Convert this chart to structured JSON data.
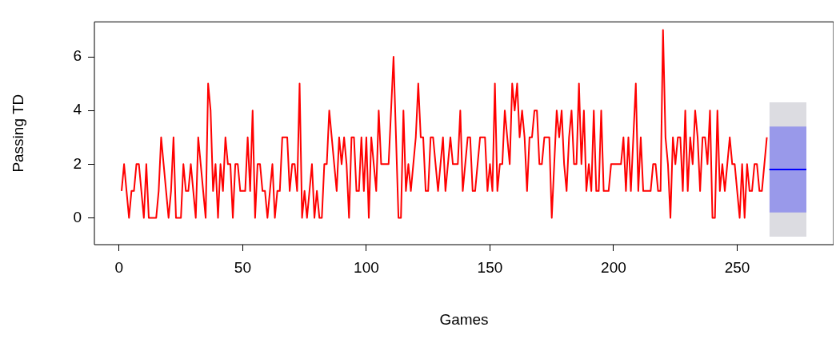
{
  "chart_data": {
    "type": "line",
    "xlabel": "Games",
    "ylabel": "Passing TD",
    "xlim": [
      -10,
      289
    ],
    "ylim": [
      -1,
      7.3
    ],
    "xticks": [
      0,
      50,
      100,
      150,
      200,
      250
    ],
    "yticks": [
      0,
      2,
      4,
      6
    ],
    "grid": false,
    "legend": false,
    "series": [
      {
        "color": "#ff0000",
        "x": [
          1,
          2,
          3,
          4,
          5,
          6,
          7,
          8,
          9,
          10,
          11,
          12,
          13,
          14,
          15,
          16,
          17,
          18,
          19,
          20,
          21,
          22,
          23,
          24,
          25,
          26,
          27,
          28,
          29,
          30,
          31,
          32,
          33,
          34,
          35,
          36,
          37,
          38,
          39,
          40,
          41,
          42,
          43,
          44,
          45,
          46,
          47,
          48,
          49,
          50,
          51,
          52,
          53,
          54,
          55,
          56,
          57,
          58,
          59,
          60,
          61,
          62,
          63,
          64,
          65,
          66,
          67,
          68,
          69,
          70,
          71,
          72,
          73,
          74,
          75,
          76,
          77,
          78,
          79,
          80,
          81,
          82,
          83,
          84,
          85,
          86,
          87,
          88,
          89,
          90,
          91,
          92,
          93,
          94,
          95,
          96,
          97,
          98,
          99,
          100,
          101,
          102,
          103,
          104,
          105,
          106,
          107,
          108,
          109,
          110,
          111,
          112,
          113,
          114,
          115,
          116,
          117,
          118,
          119,
          120,
          121,
          122,
          123,
          124,
          125,
          126,
          127,
          128,
          129,
          130,
          131,
          132,
          133,
          134,
          135,
          136,
          137,
          138,
          139,
          140,
          141,
          142,
          143,
          144,
          145,
          146,
          147,
          148,
          149,
          150,
          151,
          152,
          153,
          154,
          155,
          156,
          157,
          158,
          159,
          160,
          161,
          162,
          163,
          164,
          165,
          166,
          167,
          168,
          169,
          170,
          171,
          172,
          173,
          174,
          175,
          176,
          177,
          178,
          179,
          180,
          181,
          182,
          183,
          184,
          185,
          186,
          187,
          188,
          189,
          190,
          191,
          192,
          193,
          194,
          195,
          196,
          197,
          198,
          199,
          200,
          201,
          202,
          203,
          204,
          205,
          206,
          207,
          208,
          209,
          210,
          211,
          212,
          213,
          214,
          215,
          216,
          217,
          218,
          219,
          220,
          221,
          222,
          223,
          224,
          225,
          226,
          227,
          228,
          229,
          230,
          231,
          232,
          233,
          234,
          235,
          236,
          237,
          238,
          239,
          240,
          241,
          242,
          243,
          244,
          245,
          246,
          247,
          248,
          249,
          250,
          251,
          252,
          253,
          254,
          255,
          256,
          257,
          258,
          259,
          260,
          261,
          262
        ],
        "values": [
          1,
          2,
          1,
          0,
          1,
          1,
          2,
          2,
          1,
          0,
          2,
          0,
          0,
          0,
          0,
          1,
          3,
          2,
          1,
          0,
          1,
          3,
          0,
          0,
          0,
          2,
          1,
          1,
          2,
          1,
          0,
          3,
          2,
          1,
          0,
          5,
          4,
          1,
          2,
          0,
          2,
          1,
          3,
          2,
          2,
          0,
          2,
          2,
          1,
          1,
          1,
          3,
          1,
          4,
          0,
          2,
          2,
          1,
          1,
          0,
          1,
          2,
          0,
          1,
          1,
          3,
          3,
          3,
          1,
          2,
          2,
          1,
          5,
          0,
          1,
          0,
          1,
          2,
          0,
          1,
          0,
          0,
          2,
          2,
          4,
          3,
          2,
          1,
          3,
          2,
          3,
          2,
          0,
          3,
          3,
          1,
          1,
          3,
          1,
          3,
          0,
          3,
          2,
          1,
          4,
          2,
          2,
          2,
          2,
          4,
          6,
          3,
          0,
          0,
          4,
          1,
          2,
          1,
          2,
          3,
          5,
          3,
          3,
          1,
          1,
          3,
          3,
          2,
          1,
          2,
          3,
          1,
          2,
          3,
          2,
          2,
          2,
          4,
          1,
          2,
          3,
          3,
          1,
          1,
          2,
          3,
          3,
          3,
          1,
          2,
          1,
          5,
          1,
          2,
          2,
          4,
          3,
          2,
          5,
          4,
          5,
          3,
          4,
          3,
          1,
          3,
          3,
          4,
          4,
          2,
          2,
          3,
          3,
          3,
          0,
          2,
          4,
          3,
          4,
          2,
          1,
          3,
          4,
          2,
          2,
          5,
          2,
          4,
          1,
          2,
          1,
          4,
          1,
          1,
          4,
          1,
          1,
          1,
          2,
          2,
          2,
          2,
          2,
          3,
          1,
          3,
          1,
          3,
          5,
          1,
          3,
          1,
          1,
          1,
          1,
          2,
          2,
          1,
          1,
          7,
          3,
          2,
          0,
          3,
          2,
          3,
          3,
          1,
          4,
          1,
          3,
          2,
          4,
          3,
          1,
          3,
          3,
          2,
          4,
          0,
          0,
          4,
          1,
          2,
          1,
          2,
          3,
          2,
          2,
          1,
          0,
          2,
          0,
          2,
          1,
          1,
          2,
          2,
          1,
          1,
          2,
          3
        ]
      },
      {
        "color": "#8c8c9c",
        "x": [
          263,
          264,
          265,
          266,
          267,
          268,
          269,
          270,
          271,
          272,
          273,
          274,
          275,
          276,
          277,
          278
        ],
        "values": [
          null,
          null,
          null,
          null,
          null,
          null,
          null,
          null,
          null,
          null,
          null,
          null,
          null,
          null,
          null,
          null
        ],
        "lower": [
          -0.7,
          -0.7,
          -0.7,
          -0.7,
          -0.7,
          -0.7,
          -0.7,
          -0.7,
          -0.7,
          -0.7,
          -0.7,
          -0.7,
          -0.7,
          -0.7,
          -0.7,
          -0.7
        ],
        "upper": [
          4.3,
          4.3,
          4.3,
          4.3,
          4.3,
          4.3,
          4.3,
          4.3,
          4.3,
          4.3,
          4.3,
          4.3,
          4.3,
          4.3,
          4.3,
          4.3
        ]
      },
      {
        "color": "#0000ff",
        "x": [
          263,
          264,
          265,
          266,
          267,
          268,
          269,
          270,
          271,
          272,
          273,
          274,
          275,
          276,
          277,
          278
        ],
        "values": [
          1.8,
          1.8,
          1.8,
          1.8,
          1.8,
          1.8,
          1.8,
          1.8,
          1.8,
          1.8,
          1.8,
          1.8,
          1.8,
          1.8,
          1.8,
          1.8
        ],
        "lower": [
          0.2,
          0.2,
          0.2,
          0.2,
          0.2,
          0.2,
          0.2,
          0.2,
          0.2,
          0.2,
          0.2,
          0.2,
          0.2,
          0.2,
          0.2,
          0.2
        ],
        "upper": [
          3.4,
          3.4,
          3.4,
          3.4,
          3.4,
          3.4,
          3.4,
          3.4,
          3.4,
          3.4,
          3.4,
          3.4,
          3.4,
          3.4,
          3.4,
          3.4
        ]
      }
    ]
  }
}
